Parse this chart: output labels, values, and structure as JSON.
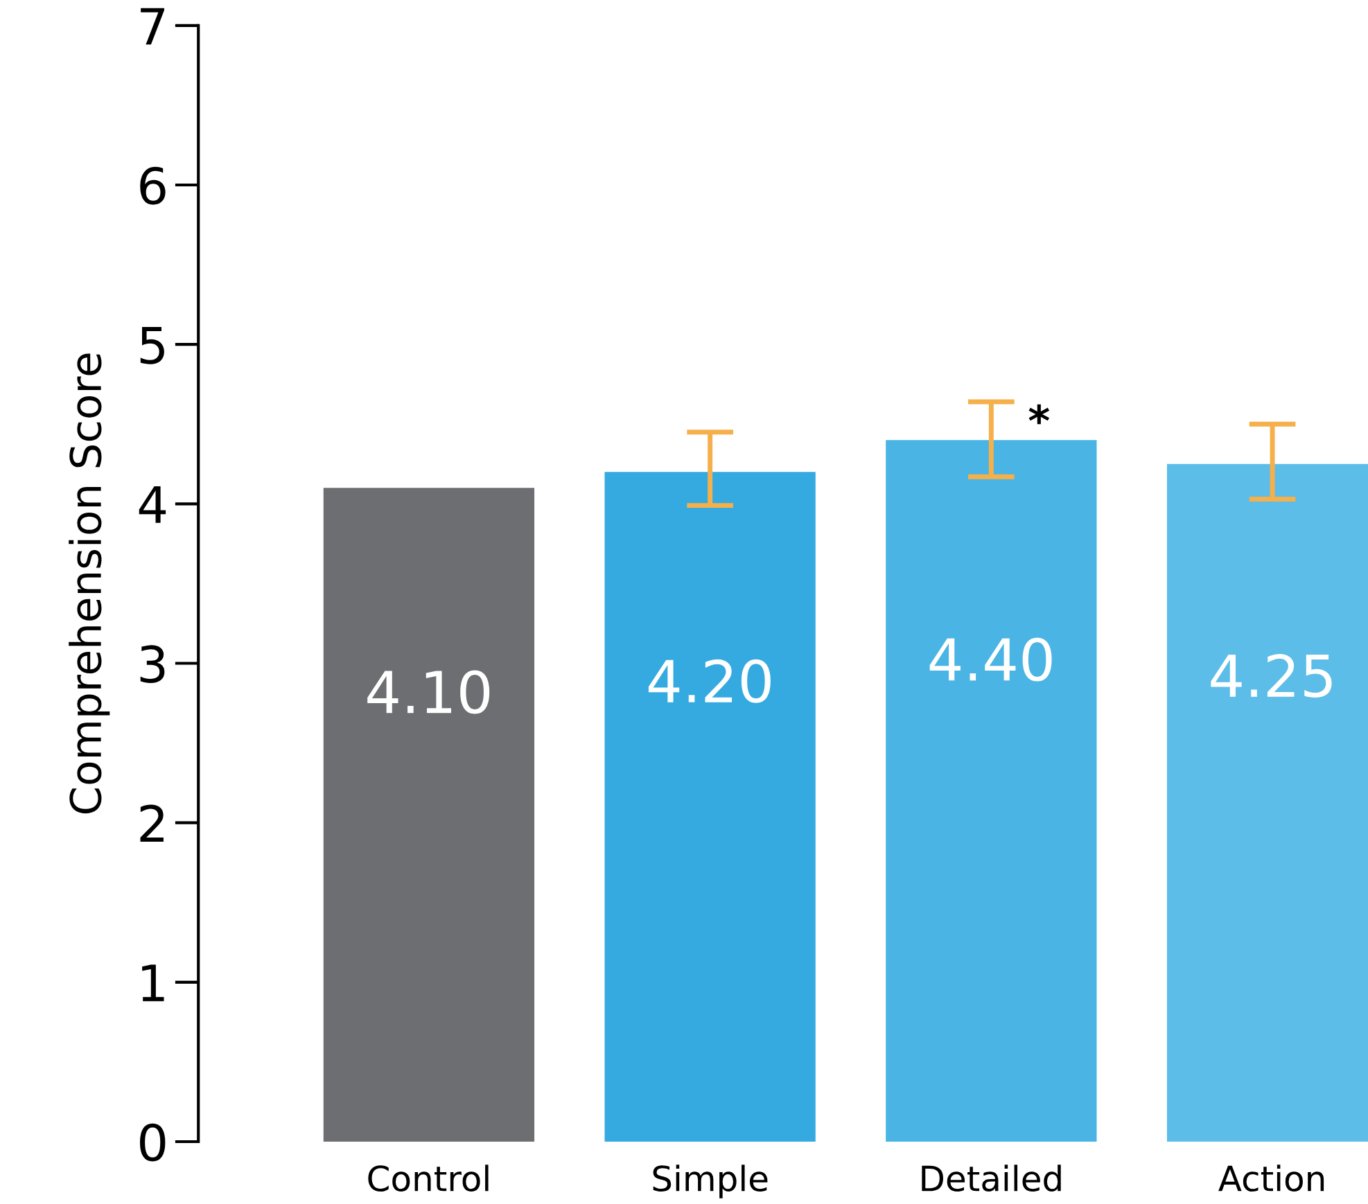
{
  "chart_data": {
    "type": "bar",
    "ylabel": "Comprehension Score",
    "categories": [
      "Control",
      "Simple",
      "Detailed",
      "Action"
    ],
    "values": [
      4.1,
      4.2,
      4.4,
      4.25
    ],
    "colors": [
      "#6d6e71",
      "#35aae0",
      "#4ab4e4",
      "#5cbde8"
    ],
    "errors": [
      null,
      [
        3.99,
        4.45
      ],
      [
        4.17,
        4.64
      ],
      [
        4.03,
        4.5
      ]
    ],
    "value_labels": [
      "4.10",
      "4.20",
      "4.40",
      "4.25"
    ],
    "annotations": [
      {
        "text": "*",
        "x": "Detailed",
        "y": 4.5
      }
    ],
    "ylim": [
      0,
      7
    ],
    "yticks": [
      0,
      1,
      2,
      3,
      4,
      5,
      6,
      7
    ],
    "grid": false,
    "legend": false
  }
}
